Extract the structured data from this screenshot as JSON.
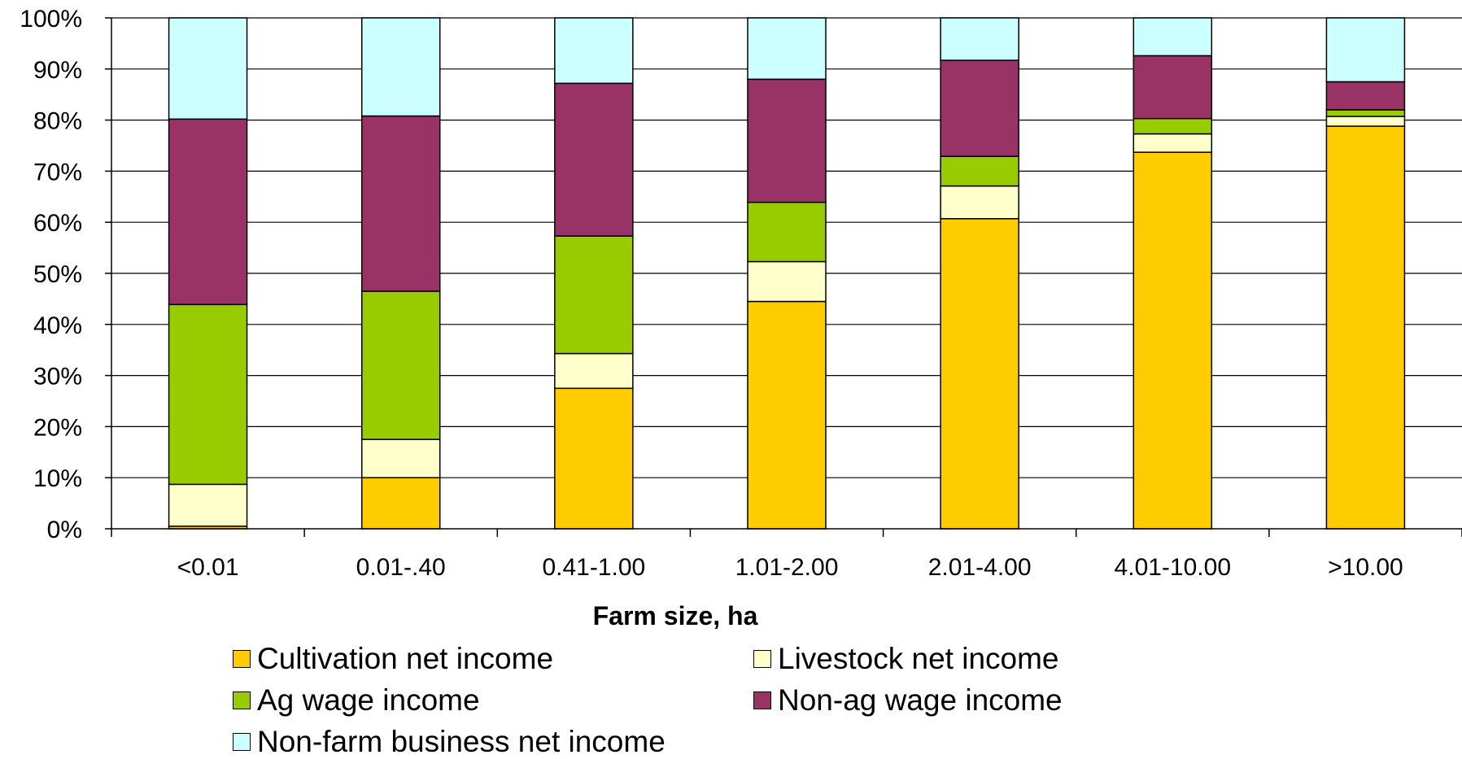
{
  "chart_data": {
    "type": "bar",
    "stacked": true,
    "xlabel": "Farm size, ha",
    "ylabel": "",
    "ylim": [
      0,
      100
    ],
    "y_ticks": [
      "0%",
      "10%",
      "20%",
      "30%",
      "40%",
      "50%",
      "60%",
      "70%",
      "80%",
      "90%",
      "100%"
    ],
    "categories": [
      "<0.01",
      "0.01-.40",
      "0.41-1.00",
      "1.01-2.00",
      "2.01-4.00",
      "4.01-10.00",
      ">10.00"
    ],
    "series": [
      {
        "name": "Cultivation net income",
        "color": "#FFCC00",
        "values": [
          0.5,
          10,
          27.5,
          44.5,
          60.7,
          73.7,
          78.8
        ]
      },
      {
        "name": "Livestock net income",
        "color": "#FFFFCC",
        "values": [
          8.2,
          7.5,
          6.8,
          7.8,
          6.4,
          3.6,
          1.9
        ]
      },
      {
        "name": "Ag wage income",
        "color": "#99CC00",
        "values": [
          35.2,
          29,
          23,
          11.6,
          5.8,
          3.0,
          1.3
        ]
      },
      {
        "name": "Non-ag wage income",
        "color": "#993366",
        "values": [
          36.3,
          34.3,
          29.9,
          24.1,
          18.8,
          12.3,
          5.5
        ]
      },
      {
        "name": "Non-farm business net income",
        "color": "#CCFFFF",
        "values": [
          19.8,
          19.2,
          12.8,
          12.0,
          8.3,
          7.4,
          12.5
        ]
      }
    ],
    "grid": true,
    "legend_position": "bottom"
  }
}
